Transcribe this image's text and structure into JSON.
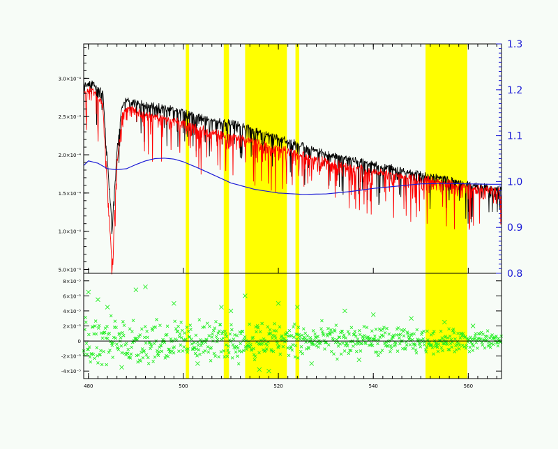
{
  "chart_data": {
    "type": "line",
    "title": "",
    "xlabel": "",
    "ylabel": "",
    "x_ticks": [
      "480",
      "500",
      "520",
      "540",
      "560"
    ],
    "x_tick_values": [
      480,
      500,
      520,
      540,
      560
    ],
    "xlim": [
      479,
      567
    ],
    "top_panel": {
      "left_axis": {
        "ylim": [
          0.45,
          3.45
        ],
        "tick_values": [
          0.5,
          1.0,
          1.5,
          2.0,
          2.5,
          3.0
        ],
        "tick_labels": [
          "5.0×10⁻⁵",
          "1.0×10⁻⁴",
          "1.5×10⁻⁴",
          "2.0×10⁻⁴",
          "2.5×10⁻⁴",
          "3.0×10⁻⁴"
        ]
      },
      "right_axis": {
        "ylim": [
          0.8,
          1.3
        ],
        "tick_values": [
          0.8,
          0.9,
          1.0,
          1.1,
          1.2,
          1.3
        ],
        "tick_labels": [
          "0.8",
          "0.9",
          "1.0",
          "1.1",
          "1.2",
          "1.3"
        ],
        "color": "#1a1ad6"
      },
      "series": [
        {
          "role": "observed spectrum",
          "color": "#000000",
          "x": [
            479,
            481,
            483,
            485,
            486,
            487,
            488,
            490,
            495,
            500,
            505,
            510,
            515,
            520,
            525,
            530,
            535,
            540,
            545,
            550,
            555,
            560,
            565,
            567
          ],
          "y": [
            2.95,
            2.97,
            2.85,
            1.05,
            2.1,
            2.65,
            2.75,
            2.72,
            2.65,
            2.6,
            2.5,
            2.45,
            2.35,
            2.25,
            2.15,
            2.05,
            1.98,
            1.9,
            1.85,
            1.78,
            1.72,
            1.64,
            1.6,
            1.58
          ]
        },
        {
          "role": "model spectrum",
          "color": "#ff0000",
          "x": [
            479,
            481,
            483,
            485,
            486,
            487,
            488,
            490,
            495,
            500,
            505,
            510,
            515,
            520,
            525,
            530,
            535,
            540,
            545,
            550,
            555,
            560,
            565,
            567
          ],
          "y": [
            2.85,
            2.88,
            2.7,
            0.55,
            1.9,
            2.55,
            2.65,
            2.6,
            2.52,
            2.45,
            2.35,
            2.28,
            2.2,
            2.12,
            2.03,
            1.95,
            1.88,
            1.82,
            1.77,
            1.72,
            1.67,
            1.62,
            1.58,
            1.56
          ]
        },
        {
          "role": "smooth correction (right axis)",
          "color": "#1a1ad6",
          "axis": "right",
          "x": [
            479,
            480,
            482,
            484,
            486,
            488,
            490,
            492,
            494,
            496,
            498,
            500,
            503,
            506,
            510,
            515,
            520,
            525,
            530,
            535,
            540,
            545,
            550,
            555,
            560,
            565,
            567
          ],
          "y": [
            1.035,
            1.045,
            1.04,
            1.028,
            1.026,
            1.028,
            1.037,
            1.045,
            1.05,
            1.051,
            1.049,
            1.043,
            1.03,
            1.016,
            0.997,
            0.983,
            0.975,
            0.972,
            0.973,
            0.978,
            0.985,
            0.99,
            0.995,
            0.996,
            0.995,
            0.994,
            0.994
          ]
        }
      ]
    },
    "bottom_panel": {
      "ylim": [
        -5,
        9
      ],
      "tick_values": [
        -4,
        -2,
        0,
        2,
        4,
        6,
        8
      ],
      "tick_labels": [
        "-4×10⁻⁵",
        "-2×10⁻⁵",
        "0",
        "2×10⁻⁵",
        "4×10⁻⁵",
        "6×10⁻⁵",
        "8×10⁻⁵"
      ],
      "zero_line": 0,
      "residuals": {
        "marker": "x",
        "color": "#22ee22",
        "x_range": [
          479,
          567
        ],
        "envelope_x": [
          479,
          485,
          490,
          500,
          510,
          520,
          530,
          540,
          550,
          560,
          567
        ],
        "envelope_y": [
          4.5,
          4.0,
          4.5,
          3.5,
          3.5,
          3.5,
          3.0,
          2.5,
          2.0,
          2.0,
          1.5
        ],
        "outliers_x": [
          480,
          482,
          484,
          487,
          490,
          492,
          498,
          503,
          508,
          510,
          513,
          516,
          518,
          520,
          524,
          527,
          534,
          537,
          540,
          548,
          555,
          561
        ],
        "outliers_y": [
          6.5,
          5.5,
          4.5,
          -3.5,
          6.8,
          7.2,
          5.0,
          -3.0,
          4.5,
          4.0,
          6.0,
          -3.8,
          -4.0,
          5.0,
          4.5,
          -3.0,
          4.0,
          -2.5,
          3.5,
          3.0,
          2.5,
          2.0
        ]
      }
    },
    "highlight_bands": [
      {
        "x0": 500.5,
        "x1": 501.2,
        "color": "#ffff00"
      },
      {
        "x0": 508.5,
        "x1": 509.6,
        "color": "#ffff00"
      },
      {
        "x0": 513.0,
        "x1": 521.8,
        "color": "#ffff00"
      },
      {
        "x0": 523.6,
        "x1": 524.4,
        "color": "#ffff00"
      },
      {
        "x0": 551.0,
        "x1": 559.8,
        "color": "#ffff00"
      }
    ],
    "grid": false,
    "legend": "none"
  }
}
